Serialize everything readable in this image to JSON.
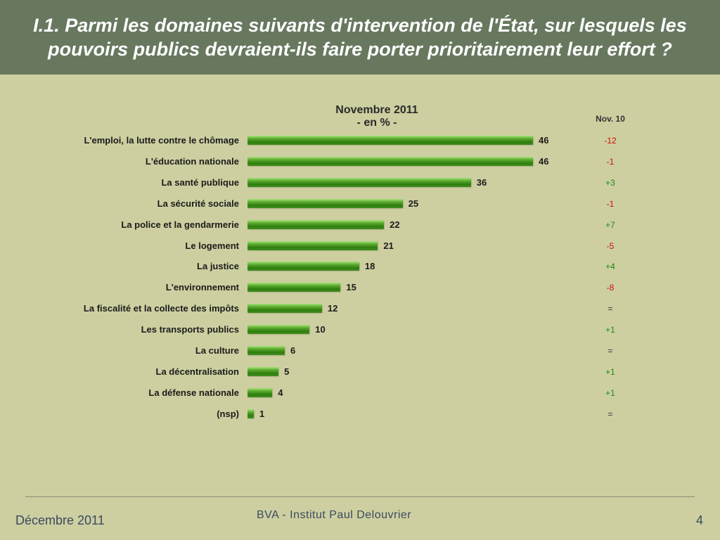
{
  "header": {
    "title": "I.1. Parmi les domaines suivants d'intervention de l'État, sur lesquels les pouvoirs publics devraient-ils faire porter prioritairement leur effort ?"
  },
  "chart_data": {
    "type": "bar",
    "title_line1": "Novembre  2011",
    "title_line2": "- en % -",
    "comparison_header": "Nov. 10",
    "categories": [
      "L'emploi, la lutte contre le chômage",
      "L'éducation nationale",
      "La santé publique",
      "La sécurité sociale",
      "La police et la gendarmerie",
      "Le logement",
      "La justice",
      "L'environnement",
      "La fiscalité et la collecte des impôts",
      "Les transports publics",
      "La culture",
      "La décentralisation",
      "La défense nationale",
      "(nsp)"
    ],
    "values": [
      46,
      46,
      36,
      25,
      22,
      21,
      18,
      15,
      12,
      10,
      6,
      5,
      4,
      1
    ],
    "changes_vs_nov10": [
      "-12",
      "-1",
      "+3",
      "-1",
      "+7",
      "-5",
      "+4",
      "-8",
      "=",
      "+1",
      "=",
      "+1",
      "+1",
      "="
    ],
    "colors": {
      "bar": "#3f8f1e",
      "negative": "#cc1111",
      "positive": "#1d8a1d",
      "neutral": "#333333"
    },
    "xlim": [
      0,
      46
    ]
  },
  "footer": {
    "date": "Décembre 2011",
    "org": "BVA - Institut Paul Delouvrier",
    "page": "4"
  }
}
